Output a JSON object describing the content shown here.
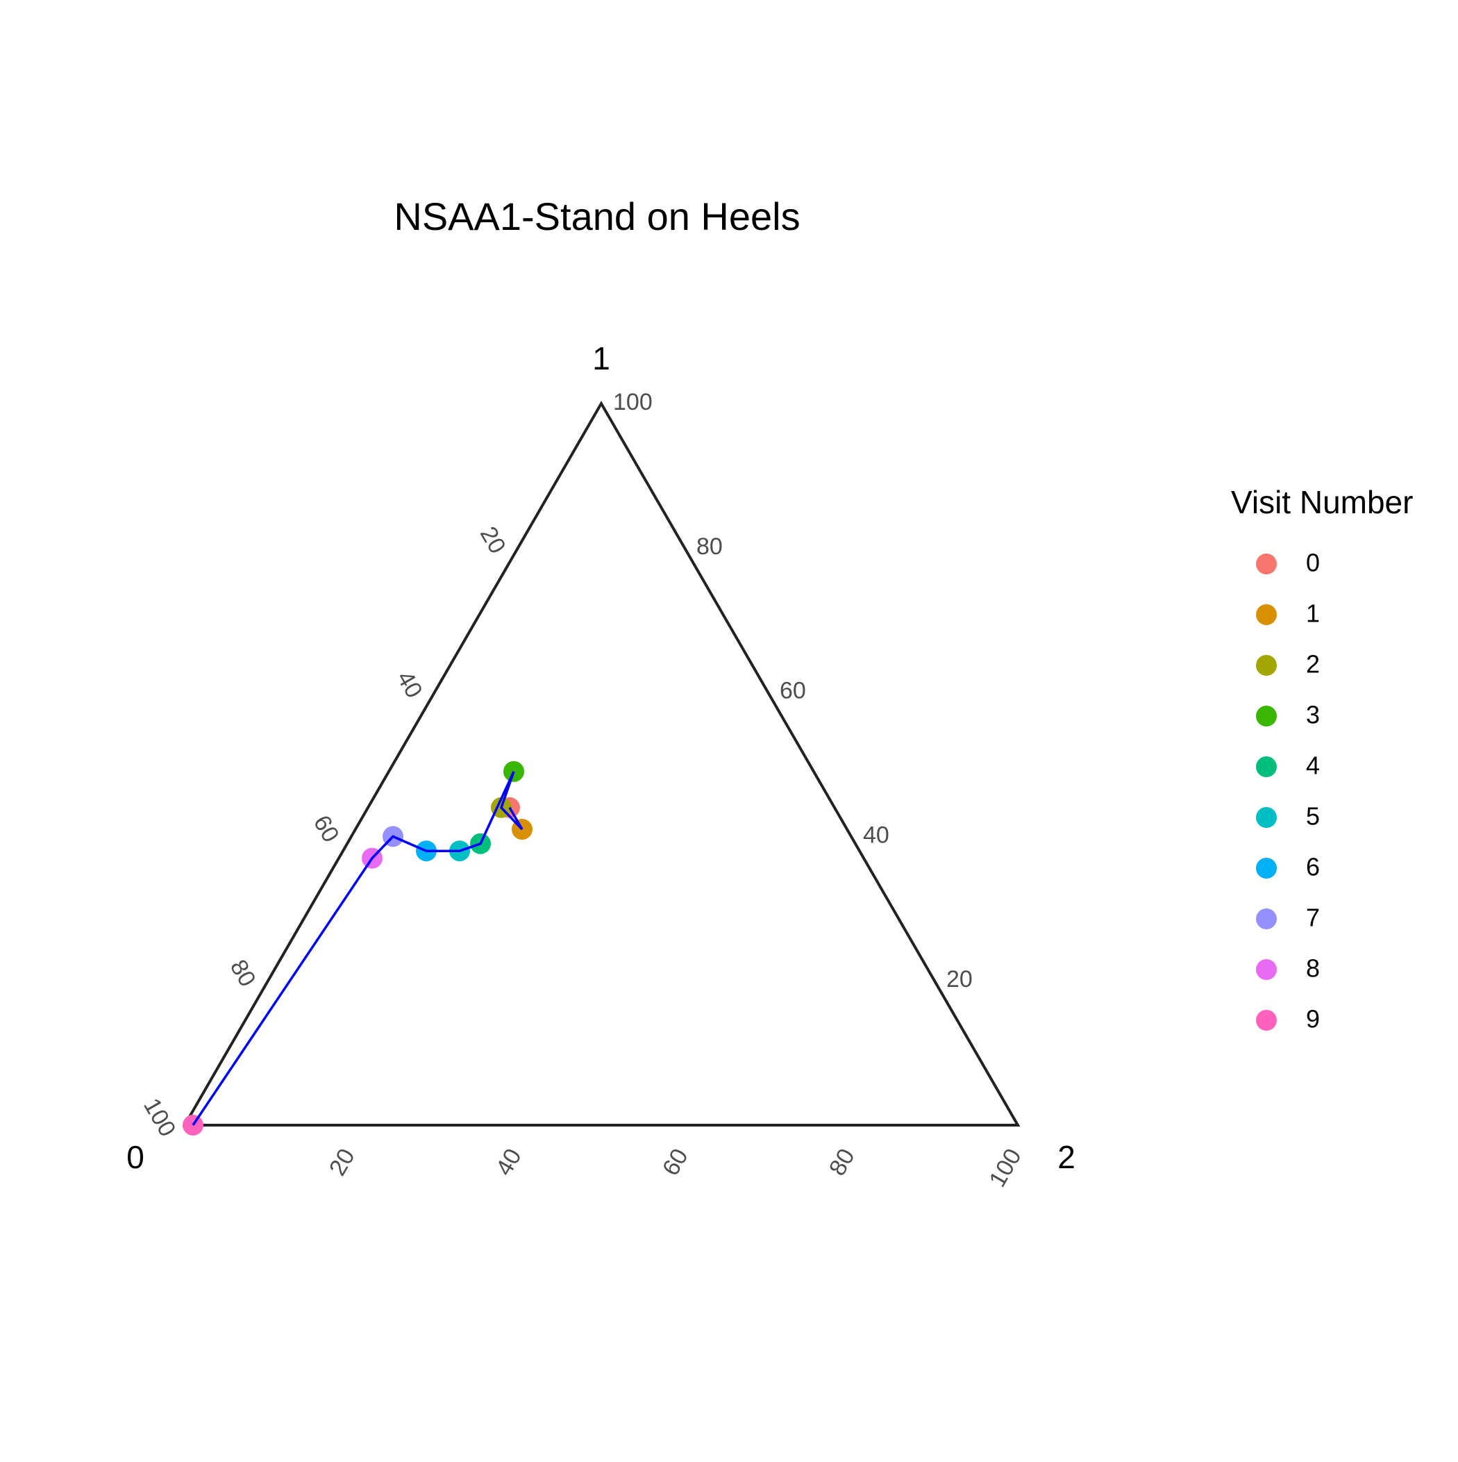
{
  "chart_data": {
    "type": "scatter",
    "subtype": "ternary",
    "title": "NSAA1-Stand on Heels",
    "axes": {
      "vertex_left": "0",
      "vertex_top": "1",
      "vertex_right": "2"
    },
    "ticks": {
      "left_edge": [
        "20",
        "40",
        "60",
        "80",
        "100"
      ],
      "right_edge": [
        "100",
        "80",
        "60",
        "40",
        "20"
      ],
      "bottom_edge": [
        "20",
        "40",
        "60",
        "80",
        "100"
      ]
    },
    "legend": {
      "title": "Visit Number",
      "position": "right",
      "entries": [
        {
          "label": "0",
          "color": "#F8766D"
        },
        {
          "label": "1",
          "color": "#D89000"
        },
        {
          "label": "2",
          "color": "#A3A500"
        },
        {
          "label": "3",
          "color": "#39B600"
        },
        {
          "label": "4",
          "color": "#00BF7D"
        },
        {
          "label": "5",
          "color": "#00BFC4"
        },
        {
          "label": "6",
          "color": "#00B0F6"
        },
        {
          "label": "7",
          "color": "#9590FF"
        },
        {
          "label": "8",
          "color": "#E76BF3"
        },
        {
          "label": "9",
          "color": "#FF62BC"
        }
      ]
    },
    "points": [
      {
        "visit": "0",
        "p0": 39,
        "p1": 44,
        "p2": 17
      },
      {
        "visit": "1",
        "p0": 39,
        "p1": 41,
        "p2": 20
      },
      {
        "visit": "2",
        "p0": 40,
        "p1": 44,
        "p2": 16
      },
      {
        "visit": "3",
        "p0": 36,
        "p1": 49,
        "p2": 15
      },
      {
        "visit": "4",
        "p0": 45,
        "p1": 39,
        "p2": 16
      },
      {
        "visit": "5",
        "p0": 48,
        "p1": 38,
        "p2": 14
      },
      {
        "visit": "6",
        "p0": 52,
        "p1": 38,
        "p2": 10
      },
      {
        "visit": "7",
        "p0": 55,
        "p1": 40,
        "p2": 5
      },
      {
        "visit": "8",
        "p0": 59,
        "p1": 37,
        "p2": 4
      },
      {
        "visit": "9",
        "p0": 99,
        "p1": 0,
        "p2": 1
      }
    ],
    "path_color": "#0000ff",
    "grid": false
  }
}
